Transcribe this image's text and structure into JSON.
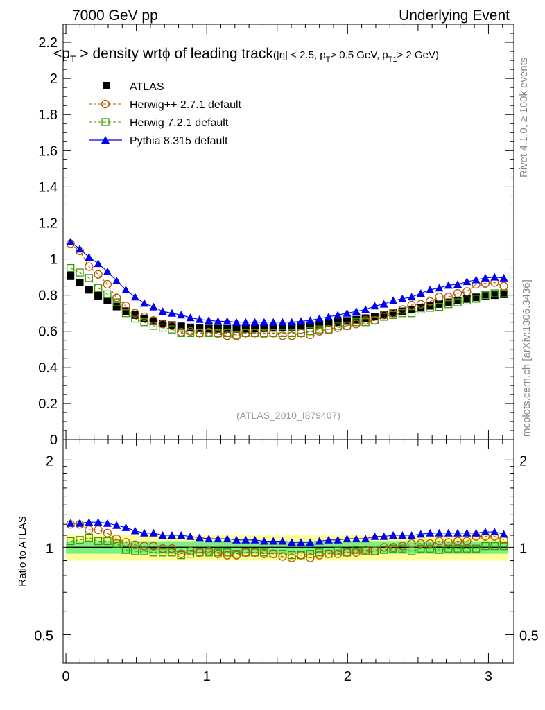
{
  "header": {
    "left": "7000 GeV pp",
    "right": "Underlying Event",
    "side_rivet": "Rivet 4.1.0, ≥ 100k events",
    "side_mcplots": "mcplots.cern.ch [arXiv:1306.3436]"
  },
  "colors": {
    "atlas": "#000000",
    "herwigpp": "#b25a00",
    "herwig7": "#3a9a00",
    "pythia": "#0000ee",
    "band_inner": "#7ff07f",
    "band_outer": "#ffff9a"
  },
  "chart_data": [
    {
      "type": "scatter",
      "panel": "main",
      "title": "<pT> density wrt φ of leading track (|η| < 2.5, pT > 0.5 GeV, pT1 > 2 GeV)",
      "title_parts": {
        "main": "<p",
        "sub_T": "T",
        "mid": "> density wrt",
        "phi": "ϕ",
        "tail": "of leading track",
        "cut_open": "(|η| < 2.5, p",
        "cut_pt": "> 0.5 GeV, p",
        "cut_sub_T1": "T1",
        "cut_close": "> 2 GeV)"
      },
      "watermark": "(ATLAS_2010_I879407)",
      "xlabel": "",
      "ylabel": "",
      "xlim": [
        -0.02,
        3.18
      ],
      "ylim": [
        0,
        2.3
      ],
      "x_ticks": [
        0,
        1,
        2,
        3
      ],
      "y_ticks": [
        0,
        0.2,
        0.4,
        0.6,
        0.8,
        1,
        1.2,
        1.4,
        1.6,
        1.8,
        2,
        2.2
      ],
      "y_tick_labels": [
        "0",
        "0.2",
        "0.4",
        "0.6",
        "0.8",
        "1",
        "1.2",
        "1.4",
        "1.6",
        "1.8",
        "2",
        "2.2"
      ],
      "legend": [
        {
          "name": "ATLAS",
          "marker": "filled-square"
        },
        {
          "name": "Herwig++ 2.7.1 default",
          "marker": "open-circle"
        },
        {
          "name": "Herwig 7.2.1 default",
          "marker": "open-square"
        },
        {
          "name": "Pythia 8.315 default",
          "marker": "filled-triangle"
        }
      ],
      "x": [
        0.0327,
        0.0982,
        0.1636,
        0.2291,
        0.2945,
        0.36,
        0.4254,
        0.4909,
        0.5563,
        0.6218,
        0.6872,
        0.7527,
        0.8181,
        0.8836,
        0.949,
        1.0145,
        1.0799,
        1.1454,
        1.2108,
        1.2763,
        1.3417,
        1.4072,
        1.4726,
        1.5381,
        1.6035,
        1.669,
        1.7344,
        1.7999,
        1.8653,
        1.9308,
        1.9962,
        2.0617,
        2.1271,
        2.1926,
        2.258,
        2.3235,
        2.3889,
        2.4544,
        2.5198,
        2.5853,
        2.6507,
        2.7162,
        2.7816,
        2.8471,
        2.9125,
        2.978,
        3.0434,
        3.1089
      ],
      "series": [
        {
          "name": "ATLAS",
          "values": [
            0.905,
            0.87,
            0.83,
            0.797,
            0.77,
            0.737,
            0.711,
            0.69,
            0.671,
            0.656,
            0.643,
            0.634,
            0.627,
            0.621,
            0.617,
            0.615,
            0.614,
            0.613,
            0.613,
            0.614,
            0.615,
            0.617,
            0.619,
            0.622,
            0.625,
            0.628,
            0.632,
            0.637,
            0.643,
            0.65,
            0.657,
            0.664,
            0.672,
            0.681,
            0.691,
            0.7,
            0.71,
            0.72,
            0.73,
            0.741,
            0.751,
            0.76,
            0.77,
            0.779,
            0.788,
            0.795,
            0.8,
            0.805
          ]
        },
        {
          "name": "Herwig++ 2.7.1 default",
          "values": [
            1.085,
            1.045,
            0.958,
            0.915,
            0.86,
            0.785,
            0.74,
            0.7,
            0.68,
            0.66,
            0.64,
            0.63,
            0.595,
            0.6,
            0.59,
            0.595,
            0.585,
            0.575,
            0.575,
            0.59,
            0.59,
            0.585,
            0.59,
            0.575,
            0.575,
            0.59,
            0.58,
            0.6,
            0.61,
            0.62,
            0.63,
            0.64,
            0.66,
            0.66,
            0.69,
            0.7,
            0.72,
            0.745,
            0.75,
            0.765,
            0.79,
            0.79,
            0.81,
            0.82,
            0.86,
            0.865,
            0.87,
            0.85
          ]
        },
        {
          "name": "Herwig 7.2.1 default",
          "values": [
            0.95,
            0.925,
            0.895,
            0.84,
            0.805,
            0.76,
            0.7,
            0.67,
            0.65,
            0.63,
            0.62,
            0.61,
            0.59,
            0.59,
            0.59,
            0.59,
            0.59,
            0.59,
            0.58,
            0.59,
            0.59,
            0.59,
            0.59,
            0.59,
            0.59,
            0.59,
            0.6,
            0.61,
            0.61,
            0.63,
            0.63,
            0.65,
            0.65,
            0.66,
            0.68,
            0.69,
            0.7,
            0.7,
            0.72,
            0.73,
            0.735,
            0.75,
            0.76,
            0.77,
            0.78,
            0.8,
            0.81,
            0.81
          ]
        },
        {
          "name": "Pythia 8.315 default",
          "values": [
            1.095,
            1.055,
            1.01,
            0.975,
            0.93,
            0.88,
            0.83,
            0.79,
            0.755,
            0.735,
            0.71,
            0.7,
            0.69,
            0.675,
            0.665,
            0.66,
            0.655,
            0.655,
            0.65,
            0.65,
            0.65,
            0.65,
            0.65,
            0.65,
            0.65,
            0.655,
            0.66,
            0.67,
            0.68,
            0.69,
            0.7,
            0.71,
            0.72,
            0.74,
            0.75,
            0.77,
            0.78,
            0.79,
            0.81,
            0.83,
            0.84,
            0.855,
            0.86,
            0.875,
            0.885,
            0.895,
            0.9,
            0.895
          ]
        }
      ]
    },
    {
      "type": "scatter",
      "panel": "ratio",
      "title": "",
      "xlabel": "",
      "ylabel": "Ratio to ATLAS",
      "y_scale": "log",
      "xlim": [
        -0.02,
        3.18
      ],
      "ylim": [
        0.4,
        2.35
      ],
      "x_ticks": [
        0,
        1,
        2,
        3
      ],
      "x_tick_labels": [
        "0",
        "1",
        "2",
        "3"
      ],
      "y_ticks": [
        0.5,
        1,
        2
      ],
      "y_tick_labels": [
        "0.5",
        "1",
        "2"
      ],
      "band": {
        "inner": 0.05,
        "outer": 0.1
      },
      "series": [
        {
          "name": "Herwig++ 2.7.1 default",
          "values": [
            1.2,
            1.2,
            1.15,
            1.15,
            1.12,
            1.07,
            1.04,
            1.02,
            1.01,
            1.01,
            0.99,
            0.99,
            0.95,
            0.97,
            0.96,
            0.97,
            0.95,
            0.94,
            0.94,
            0.96,
            0.96,
            0.95,
            0.95,
            0.93,
            0.92,
            0.94,
            0.92,
            0.94,
            0.95,
            0.95,
            0.96,
            0.96,
            0.98,
            0.97,
            1.0,
            1.0,
            1.01,
            1.03,
            1.03,
            1.03,
            1.05,
            1.04,
            1.05,
            1.05,
            1.09,
            1.09,
            1.09,
            1.06
          ]
        },
        {
          "name": "Herwig 7.2.1 default",
          "values": [
            1.05,
            1.06,
            1.08,
            1.05,
            1.05,
            1.03,
            0.98,
            0.97,
            0.97,
            0.96,
            0.96,
            0.96,
            0.94,
            0.95,
            0.96,
            0.96,
            0.96,
            0.96,
            0.95,
            0.96,
            0.96,
            0.96,
            0.95,
            0.95,
            0.94,
            0.94,
            0.95,
            0.96,
            0.95,
            0.97,
            0.96,
            0.98,
            0.97,
            0.97,
            0.98,
            0.99,
            0.99,
            0.97,
            0.99,
            0.99,
            0.98,
            0.99,
            0.99,
            0.99,
            0.99,
            1.01,
            1.01,
            1.01
          ]
        },
        {
          "name": "Pythia 8.315 default",
          "values": [
            1.21,
            1.21,
            1.22,
            1.22,
            1.21,
            1.19,
            1.17,
            1.14,
            1.12,
            1.12,
            1.1,
            1.1,
            1.1,
            1.09,
            1.08,
            1.07,
            1.07,
            1.07,
            1.06,
            1.06,
            1.06,
            1.05,
            1.05,
            1.05,
            1.04,
            1.04,
            1.04,
            1.05,
            1.06,
            1.06,
            1.07,
            1.07,
            1.07,
            1.09,
            1.09,
            1.1,
            1.1,
            1.1,
            1.11,
            1.12,
            1.12,
            1.12,
            1.12,
            1.12,
            1.12,
            1.13,
            1.13,
            1.11
          ]
        }
      ]
    }
  ]
}
